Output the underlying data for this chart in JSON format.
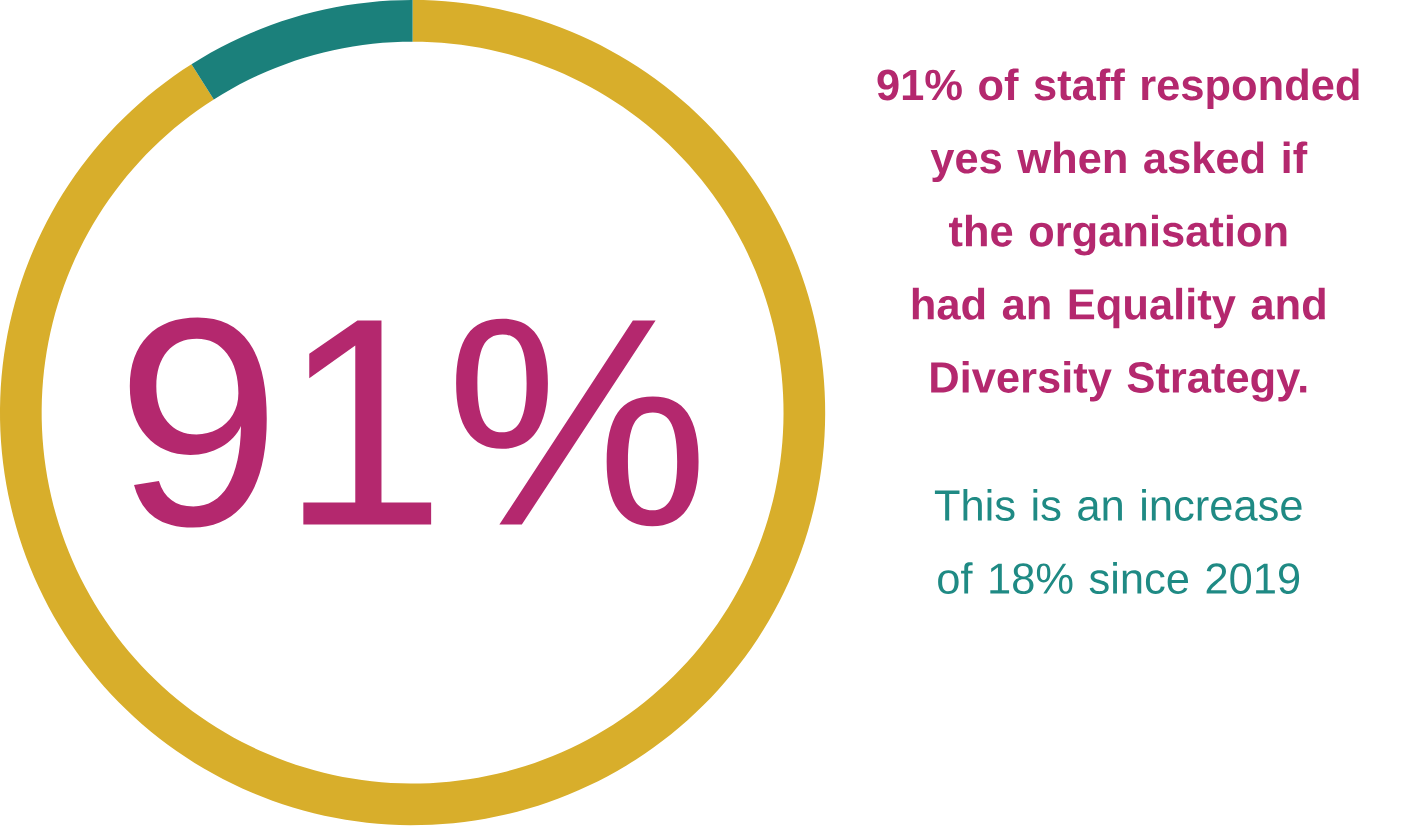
{
  "chart_data": {
    "type": "donut",
    "categories": [
      null,
      null
    ],
    "values": [
      91,
      9
    ],
    "colors": [
      "#d8ae2b",
      "#1b807b"
    ],
    "value_labels": [
      "91%",
      null
    ],
    "annotations": [
      "91% of staff responded yes when asked if the organisation had an Equality and Diversity Strategy.",
      "This is an increase of 18% since 2019"
    ]
  }
}
